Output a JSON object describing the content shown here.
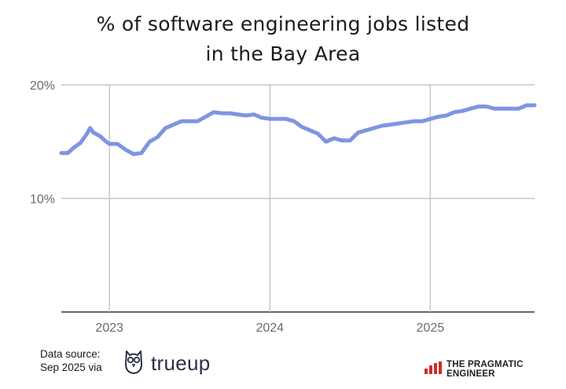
{
  "title_line1": "% of software engineering jobs listed",
  "title_line2": "in the Bay Area",
  "source_line1": "Data source:",
  "source_line2": "Sep 2025 via",
  "source_brand": "trueup",
  "publisher": "THE PRAGMATIC ENGINEER",
  "colors": {
    "line": "#7f95e0",
    "grid": "#c8c8c8",
    "text": "#6b6b6b"
  },
  "chart_data": {
    "type": "line",
    "y_tick_labels": [
      "10%",
      "20%"
    ],
    "y_ticks": [
      10,
      20
    ],
    "x_tick_labels": [
      "2023",
      "2024",
      "2025"
    ],
    "x_ticks": [
      2023.0,
      2024.0,
      2025.0
    ],
    "xlim": [
      2022.7,
      2025.65
    ],
    "ylim": [
      0,
      20
    ],
    "grid": true,
    "series": [
      {
        "values": [
          [
            2022.7,
            14.0
          ],
          [
            2022.74,
            14.0
          ],
          [
            2022.78,
            14.5
          ],
          [
            2022.82,
            14.9
          ],
          [
            2022.86,
            15.7
          ],
          [
            2022.88,
            16.2
          ],
          [
            2022.9,
            15.8
          ],
          [
            2022.94,
            15.5
          ],
          [
            2022.98,
            15.0
          ],
          [
            2023.0,
            14.8
          ],
          [
            2023.05,
            14.8
          ],
          [
            2023.1,
            14.3
          ],
          [
            2023.15,
            13.9
          ],
          [
            2023.2,
            14.0
          ],
          [
            2023.25,
            15.0
          ],
          [
            2023.3,
            15.4
          ],
          [
            2023.35,
            16.2
          ],
          [
            2023.4,
            16.5
          ],
          [
            2023.45,
            16.8
          ],
          [
            2023.5,
            16.8
          ],
          [
            2023.55,
            16.8
          ],
          [
            2023.6,
            17.2
          ],
          [
            2023.65,
            17.6
          ],
          [
            2023.7,
            17.5
          ],
          [
            2023.75,
            17.5
          ],
          [
            2023.8,
            17.4
          ],
          [
            2023.85,
            17.3
          ],
          [
            2023.9,
            17.4
          ],
          [
            2023.95,
            17.1
          ],
          [
            2024.0,
            17.0
          ],
          [
            2024.05,
            17.0
          ],
          [
            2024.1,
            17.0
          ],
          [
            2024.15,
            16.8
          ],
          [
            2024.2,
            16.3
          ],
          [
            2024.25,
            16.0
          ],
          [
            2024.3,
            15.7
          ],
          [
            2024.35,
            15.0
          ],
          [
            2024.4,
            15.3
          ],
          [
            2024.45,
            15.1
          ],
          [
            2024.5,
            15.1
          ],
          [
            2024.55,
            15.8
          ],
          [
            2024.6,
            16.0
          ],
          [
            2024.65,
            16.2
          ],
          [
            2024.7,
            16.4
          ],
          [
            2024.75,
            16.5
          ],
          [
            2024.8,
            16.6
          ],
          [
            2024.85,
            16.7
          ],
          [
            2024.9,
            16.8
          ],
          [
            2024.95,
            16.8
          ],
          [
            2025.0,
            17.0
          ],
          [
            2025.05,
            17.2
          ],
          [
            2025.1,
            17.3
          ],
          [
            2025.15,
            17.6
          ],
          [
            2025.2,
            17.7
          ],
          [
            2025.25,
            17.9
          ],
          [
            2025.3,
            18.1
          ],
          [
            2025.35,
            18.1
          ],
          [
            2025.4,
            17.9
          ],
          [
            2025.45,
            17.9
          ],
          [
            2025.5,
            17.9
          ],
          [
            2025.55,
            17.9
          ],
          [
            2025.6,
            18.2
          ],
          [
            2025.65,
            18.2
          ]
        ]
      }
    ]
  }
}
